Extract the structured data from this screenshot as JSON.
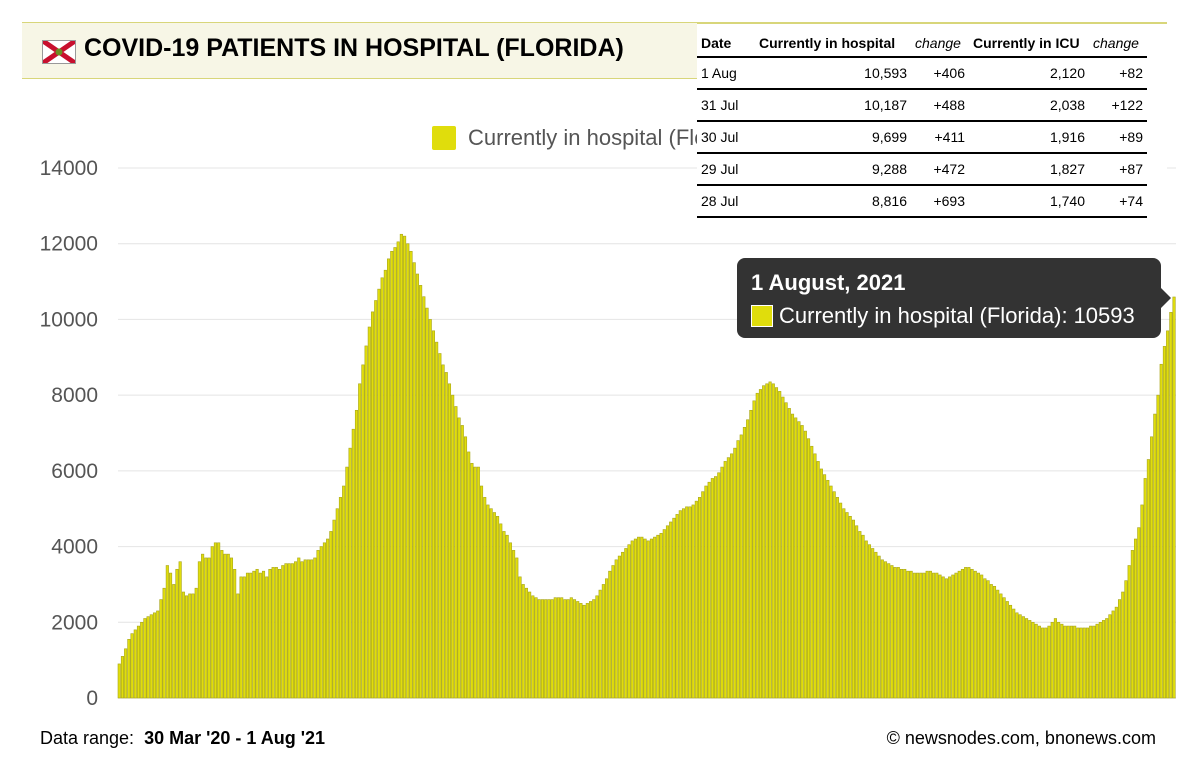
{
  "header": {
    "title": "COVID-19 PATIENTS IN HOSPITAL (FLORIDA)",
    "flag_icon": "florida-flag-icon"
  },
  "legend": {
    "label": "Currently in hospital (Florida)",
    "color": "#e0dd0c"
  },
  "table": {
    "columns": [
      "Date",
      "Currently in hospital",
      "change",
      "Currently in ICU",
      "change"
    ],
    "rows": [
      [
        "1 Aug",
        "10,593",
        "+406",
        "2,120",
        "+82"
      ],
      [
        "31 Jul",
        "10,187",
        "+488",
        "2,038",
        "+122"
      ],
      [
        "30 Jul",
        "9,699",
        "+411",
        "1,916",
        "+89"
      ],
      [
        "29 Jul",
        "9,288",
        "+472",
        "1,827",
        "+87"
      ],
      [
        "28 Jul",
        "8,816",
        "+693",
        "1,740",
        "+74"
      ]
    ]
  },
  "tooltip": {
    "date": "1 August, 2021",
    "series": "Currently in hospital (Florida)",
    "separator": ":",
    "value": "10593"
  },
  "footer": {
    "range_label": "Data range:",
    "range_value": "30 Mar '20  -  1 Aug '21",
    "credit": "© newsnodes.com, bnonews.com"
  },
  "chart_data": {
    "type": "bar",
    "title": "COVID-19 PATIENTS IN HOSPITAL (FLORIDA)",
    "series_name": "Currently in hospital (Florida)",
    "x_start": "2020-03-30",
    "x_end": "2021-08-01",
    "ylim": [
      0,
      14000
    ],
    "yticks": [
      0,
      2000,
      4000,
      6000,
      8000,
      10000,
      12000,
      14000
    ],
    "grid": true,
    "bar_color": "#e0dd0c",
    "bar_stroke": "#a8a51a",
    "values": [
      900,
      1100,
      1300,
      1550,
      1700,
      1800,
      1900,
      2000,
      2100,
      2150,
      2200,
      2250,
      2300,
      2600,
      2900,
      3500,
      3300,
      3000,
      3400,
      3600,
      2800,
      2700,
      2750,
      2750,
      2900,
      3600,
      3800,
      3700,
      3700,
      4000,
      4100,
      4100,
      3900,
      3800,
      3800,
      3700,
      3400,
      2750,
      3200,
      3200,
      3300,
      3300,
      3350,
      3400,
      3300,
      3350,
      3200,
      3400,
      3450,
      3450,
      3400,
      3500,
      3550,
      3550,
      3550,
      3600,
      3700,
      3600,
      3650,
      3650,
      3650,
      3700,
      3900,
      4000,
      4100,
      4200,
      4400,
      4700,
      5000,
      5300,
      5600,
      6100,
      6600,
      7100,
      7600,
      8300,
      8800,
      9300,
      9800,
      10200,
      10500,
      10800,
      11100,
      11300,
      11600,
      11800,
      11900,
      12050,
      12250,
      12200,
      12000,
      11800,
      11500,
      11200,
      10900,
      10600,
      10300,
      10000,
      9700,
      9400,
      9100,
      8800,
      8600,
      8300,
      8000,
      7700,
      7400,
      7200,
      6900,
      6500,
      6200,
      6100,
      6100,
      5600,
      5300,
      5100,
      5000,
      4900,
      4800,
      4600,
      4400,
      4300,
      4100,
      3900,
      3700,
      3200,
      3000,
      2900,
      2800,
      2700,
      2650,
      2600,
      2600,
      2600,
      2600,
      2600,
      2650,
      2650,
      2650,
      2600,
      2600,
      2650,
      2600,
      2550,
      2500,
      2450,
      2500,
      2550,
      2600,
      2700,
      2850,
      3000,
      3150,
      3350,
      3500,
      3650,
      3750,
      3850,
      3950,
      4050,
      4150,
      4200,
      4250,
      4250,
      4200,
      4150,
      4200,
      4250,
      4300,
      4350,
      4450,
      4550,
      4650,
      4750,
      4850,
      4950,
      5000,
      5050,
      5050,
      5100,
      5200,
      5300,
      5450,
      5600,
      5700,
      5800,
      5850,
      5950,
      6100,
      6250,
      6350,
      6450,
      6600,
      6800,
      6950,
      7150,
      7350,
      7600,
      7850,
      8050,
      8150,
      8250,
      8300,
      8350,
      8300,
      8200,
      8100,
      7950,
      7800,
      7650,
      7500,
      7400,
      7300,
      7200,
      7050,
      6850,
      6650,
      6450,
      6250,
      6050,
      5900,
      5750,
      5600,
      5450,
      5300,
      5150,
      5000,
      4900,
      4800,
      4700,
      4550,
      4400,
      4300,
      4150,
      4050,
      3950,
      3850,
      3750,
      3650,
      3600,
      3550,
      3500,
      3450,
      3450,
      3400,
      3400,
      3350,
      3350,
      3300,
      3300,
      3300,
      3300,
      3350,
      3350,
      3300,
      3300,
      3250,
      3200,
      3150,
      3200,
      3250,
      3300,
      3350,
      3400,
      3450,
      3450,
      3400,
      3350,
      3300,
      3250,
      3150,
      3100,
      3000,
      2950,
      2850,
      2750,
      2650,
      2550,
      2450,
      2350,
      2250,
      2200,
      2150,
      2100,
      2050,
      2000,
      1950,
      1900,
      1850,
      1850,
      1900,
      2000,
      2100,
      2000,
      1950,
      1900,
      1900,
      1900,
      1900,
      1850,
      1850,
      1850,
      1850,
      1900,
      1900,
      1950,
      2000,
      2050,
      2100,
      2200,
      2300,
      2400,
      2600,
      2800,
      3100,
      3500,
      3900,
      4200,
      4500,
      5100,
      5800,
      6300,
      6900,
      7500,
      8000,
      8816,
      9288,
      9699,
      10187,
      10593
    ]
  }
}
